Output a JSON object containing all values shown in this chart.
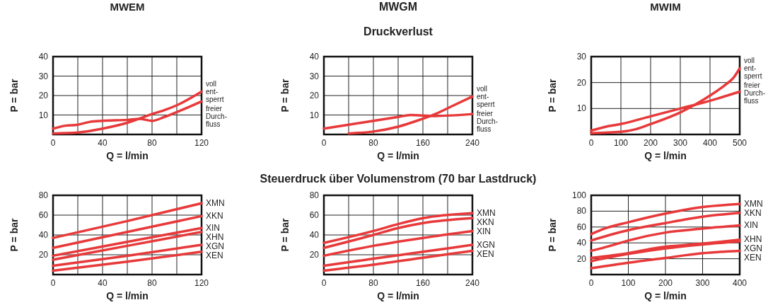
{
  "chart_data": [
    {
      "type": "line",
      "title": "MWEM",
      "xlabel": "Q = l/min",
      "ylabel": "P = bar",
      "xlim": [
        0,
        120
      ],
      "ylim": [
        0,
        40
      ],
      "xticks": [
        0,
        {
          "value": 20,
          "label": null
        },
        40,
        {
          "value": 60,
          "label": null
        },
        80,
        {
          "value": 100,
          "label": null
        },
        120
      ],
      "yticks": [
        10,
        20,
        30,
        40
      ],
      "grid": true,
      "legend": false,
      "series": [
        {
          "name": "voll\nent-\nsperrt",
          "color": "#e8393a",
          "x": [
            0,
            20,
            40,
            60,
            80,
            90,
            100,
            120
          ],
          "values": [
            0.5,
            1,
            3,
            6,
            10.5,
            12.5,
            15,
            22
          ]
        },
        {
          "name": "freier\nDurch-\nfluss",
          "color": "#e8393a",
          "x": [
            0,
            10,
            20,
            30,
            40,
            60,
            70,
            80,
            90,
            100,
            120
          ],
          "values": [
            3,
            4.5,
            5,
            6.5,
            7,
            7.5,
            8,
            7,
            9,
            11.5,
            17
          ]
        }
      ]
    },
    {
      "type": "line",
      "title": "MWGM",
      "subtitle": "Druckverlust",
      "xlabel": "Q = l/min",
      "ylabel": "P = bar",
      "xlim": [
        0,
        240
      ],
      "ylim": [
        0,
        40
      ],
      "xticks": [
        0,
        {
          "value": 40,
          "label": null
        },
        80,
        {
          "value": 120,
          "label": null
        },
        160,
        {
          "value": 200,
          "label": null
        },
        240
      ],
      "yticks": [
        10,
        20,
        30,
        40
      ],
      "grid": true,
      "legend": false,
      "series": [
        {
          "name": "voll\nent-\nsperrt",
          "color": "#e8393a",
          "x": [
            40,
            80,
            120,
            150,
            180,
            210,
            240
          ],
          "values": [
            0.5,
            1.5,
            4,
            7,
            10.5,
            15,
            19.5
          ]
        },
        {
          "name": "freier\nDurch-\nfluss",
          "color": "#e8393a",
          "x": [
            0,
            40,
            80,
            120,
            140,
            180,
            240
          ],
          "values": [
            3,
            5,
            7,
            9,
            10,
            9.5,
            10.5
          ]
        }
      ]
    },
    {
      "type": "line",
      "title": "MWIM",
      "xlabel": "Q = l/min",
      "ylabel": "P = bar",
      "xlim": [
        0,
        500
      ],
      "ylim": [
        0,
        30
      ],
      "xticks": [
        0,
        100,
        200,
        300,
        400,
        500
      ],
      "yticks": [
        10,
        20,
        30
      ],
      "grid": true,
      "legend": false,
      "series": [
        {
          "name": "voll\nent-\nsperrt",
          "color": "#e8393a",
          "x": [
            0,
            100,
            150,
            200,
            300,
            350,
            400,
            450,
            480,
            500
          ],
          "values": [
            0.5,
            1,
            2,
            4,
            8.5,
            11.5,
            15,
            19,
            22,
            25.5
          ]
        },
        {
          "name": "freier\nDurch-\nfluss",
          "color": "#e8393a",
          "x": [
            0,
            50,
            100,
            200,
            300,
            400,
            500
          ],
          "values": [
            1.5,
            3,
            4,
            7,
            10,
            13,
            16.5
          ]
        }
      ]
    },
    {
      "type": "line",
      "xlabel": "Q = l/min",
      "ylabel": "P = bar",
      "xlim": [
        0,
        120
      ],
      "ylim": [
        0,
        80
      ],
      "xticks": [
        0,
        {
          "value": 20,
          "label": null
        },
        40,
        {
          "value": 60,
          "label": null
        },
        80,
        {
          "value": 100,
          "label": null
        },
        120
      ],
      "yticks": [
        20,
        40,
        60,
        80
      ],
      "grid": true,
      "legend": false,
      "series": [
        {
          "name": "XMN",
          "color": "#e8393a",
          "x": [
            0,
            60,
            120
          ],
          "values": [
            37,
            54,
            72
          ]
        },
        {
          "name": "XKN",
          "color": "#e8393a",
          "x": [
            0,
            60,
            120
          ],
          "values": [
            27,
            43,
            59
          ]
        },
        {
          "name": "XIN",
          "color": "#e8393a",
          "x": [
            0,
            60,
            120
          ],
          "values": [
            19,
            33,
            47
          ]
        },
        {
          "name": "XHN",
          "color": "#e8393a",
          "x": [
            0,
            60,
            120
          ],
          "values": [
            15,
            29,
            43
          ]
        },
        {
          "name": "XGN",
          "color": "#e8393a",
          "x": [
            0,
            60,
            120
          ],
          "values": [
            9,
            19,
            30
          ]
        },
        {
          "name": "XEN",
          "color": "#e8393a",
          "x": [
            0,
            60,
            120
          ],
          "values": [
            4,
            13,
            23
          ]
        }
      ]
    },
    {
      "type": "line",
      "title": "Steuerdruck über Volumenstrom (70 bar Lastdruck)",
      "xlabel": "Q = l/min",
      "ylabel": "P = bar",
      "xlim": [
        0,
        240
      ],
      "ylim": [
        0,
        80
      ],
      "xticks": [
        0,
        {
          "value": 40,
          "label": null
        },
        80,
        {
          "value": 120,
          "label": null
        },
        160,
        {
          "value": 200,
          "label": null
        },
        240
      ],
      "yticks": [
        20,
        40,
        60,
        80
      ],
      "grid": true,
      "legend": false,
      "series": [
        {
          "name": "XMN",
          "color": "#e8393a",
          "x": [
            0,
            80,
            120,
            160,
            240
          ],
          "values": [
            32,
            44,
            51,
            57,
            62
          ]
        },
        {
          "name": "XKN",
          "color": "#e8393a",
          "x": [
            0,
            80,
            120,
            160,
            240
          ],
          "values": [
            27,
            40,
            47,
            52,
            57
          ]
        },
        {
          "name": "XIN",
          "color": "#e8393a",
          "x": [
            0,
            80,
            160,
            240
          ],
          "values": [
            19,
            29,
            37,
            44
          ]
        },
        {
          "name": "XGN",
          "color": "#e8393a",
          "x": [
            0,
            80,
            160,
            240
          ],
          "values": [
            9,
            16,
            23,
            30
          ]
        },
        {
          "name": "XEN",
          "color": "#e8393a",
          "x": [
            0,
            80,
            160,
            240
          ],
          "values": [
            4,
            10,
            17,
            24
          ]
        }
      ]
    },
    {
      "type": "line",
      "xlabel": "Q = l/min",
      "ylabel": "P = bar",
      "xlim": [
        0,
        400
      ],
      "ylim": [
        0,
        100
      ],
      "xticks": [
        0,
        100,
        200,
        300,
        400
      ],
      "yticks": [
        20,
        40,
        60,
        80,
        100
      ],
      "grid": true,
      "legend": false,
      "series": [
        {
          "name": "XMN",
          "color": "#e8393a",
          "x": [
            0,
            30,
            100,
            180,
            280,
            400
          ],
          "values": [
            51,
            57,
            66,
            75,
            84,
            89
          ]
        },
        {
          "name": "XKN",
          "color": "#e8393a",
          "x": [
            0,
            50,
            100,
            200,
            300,
            400
          ],
          "values": [
            43,
            50,
            56,
            65,
            73,
            78
          ]
        },
        {
          "name": "XIN",
          "color": "#e8393a",
          "x": [
            0,
            50,
            100,
            200,
            300,
            400
          ],
          "values": [
            30,
            36,
            43,
            53,
            58,
            62
          ]
        },
        {
          "name": "XHN",
          "color": "#e8393a",
          "x": [
            0,
            100,
            180,
            300,
            400
          ],
          "values": [
            21,
            27,
            34,
            39,
            44
          ]
        },
        {
          "name": "XGN",
          "color": "#e8393a",
          "x": [
            0,
            100,
            200,
            300,
            400
          ],
          "values": [
            17,
            26,
            33,
            38,
            42
          ]
        },
        {
          "name": "XEN",
          "color": "#e8393a",
          "x": [
            0,
            100,
            200,
            300,
            400
          ],
          "values": [
            8,
            15,
            21,
            27,
            30
          ]
        }
      ]
    }
  ]
}
